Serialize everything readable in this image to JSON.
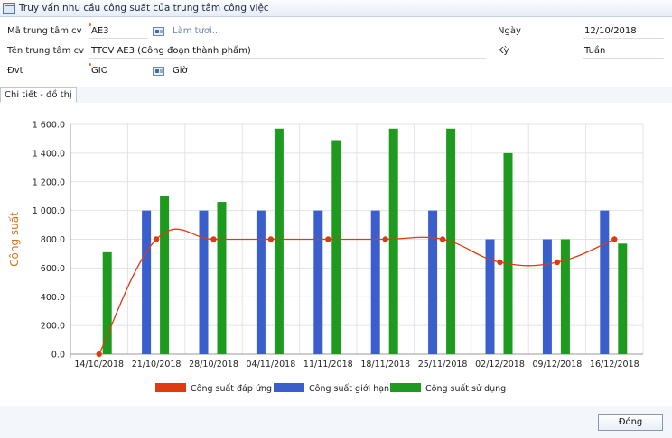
{
  "window": {
    "title": "Truy vấn nhu cầu công suất của trung tâm công việc"
  },
  "form": {
    "center_code_label": "Mã trung tâm cv",
    "center_code_value": "AE3",
    "refresh_link": "Làm tươi...",
    "center_name_label": "Tên trung tâm cv",
    "center_name_value": "TTCV AE3 (Công đoạn thành phẩm)",
    "unit_label": "Đvt",
    "unit_value": "GIO",
    "unit_desc": "Giờ",
    "date_label": "Ngày",
    "date_value": "12/10/2018",
    "period_label": "Kỳ",
    "period_value": "Tuần"
  },
  "tabs": [
    {
      "label": "Chi tiết - đồ thị"
    }
  ],
  "chart_data": {
    "type": "bar",
    "ylabel": "Công suất",
    "xlabel": "",
    "ylim": [
      0,
      1600
    ],
    "yticks": [
      "0.0",
      "200.0",
      "400.0",
      "600.0",
      "800.0",
      "1 000.0",
      "1 200.0",
      "1 400.0",
      "1 600.0"
    ],
    "grid": true,
    "legend_position": "bottom",
    "categories": [
      "14/10/2018",
      "21/10/2018",
      "28/10/2018",
      "04/11/2018",
      "11/11/2018",
      "18/11/2018",
      "25/11/2018",
      "02/12/2018",
      "09/12/2018",
      "16/12/2018"
    ],
    "series": [
      {
        "name": "Công suất đáp ứng",
        "type": "line",
        "color": "#e03a10",
        "values": [
          0,
          800,
          800,
          800,
          800,
          800,
          800,
          640,
          640,
          800
        ]
      },
      {
        "name": "Công suất giới hạn",
        "type": "bar",
        "color": "#3a5fcd",
        "values": [
          0,
          1000,
          1000,
          1000,
          1000,
          1000,
          1000,
          800,
          800,
          1000
        ]
      },
      {
        "name": "Công suất sử dụng",
        "type": "bar",
        "color": "#1e9a1e",
        "values": [
          710,
          1100,
          1060,
          1570,
          1490,
          1570,
          1570,
          1400,
          800,
          770
        ]
      }
    ]
  },
  "footer": {
    "close_label": "Đóng"
  }
}
